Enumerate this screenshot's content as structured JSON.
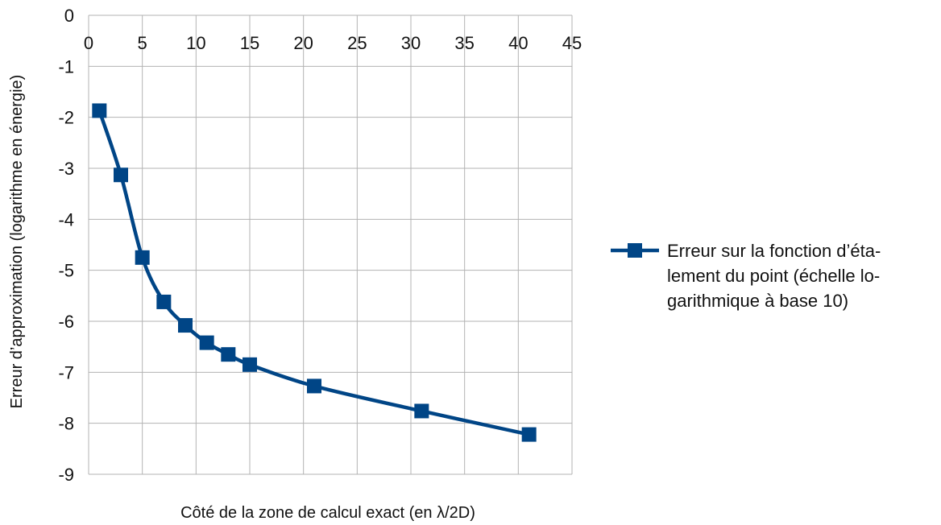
{
  "chart_data": {
    "type": "line",
    "title": "",
    "xlabel": "Côté de la zone de calcul exact (en λ/2D)",
    "ylabel": "Erreur d’approximation (logarithme en énergie)",
    "xlim": [
      0,
      45
    ],
    "ylim": [
      -9,
      0
    ],
    "x_ticks": [
      "0",
      "5",
      "10",
      "15",
      "20",
      "25",
      "30",
      "35",
      "40",
      "45"
    ],
    "y_ticks": [
      "0",
      "-1",
      "-2",
      "-3",
      "-4",
      "-5",
      "-6",
      "-7",
      "-8",
      "-9"
    ],
    "x_axis_position": "top",
    "grid": true,
    "legend_position": "right",
    "series": [
      {
        "name": "Erreur sur la fonction d’étalement du point (échelle logarithmique à base 10)",
        "name_lines": [
          "Erreur sur la fonction d’éta-",
          "lement du point (échelle lo-",
          "garithmique à base 10)"
        ],
        "color": "#004586",
        "marker": "square",
        "x": [
          1,
          3,
          5,
          7,
          9,
          11,
          13,
          15,
          21,
          31,
          41
        ],
        "y": [
          -1.87,
          -3.13,
          -4.75,
          -5.62,
          -6.08,
          -6.42,
          -6.65,
          -6.85,
          -7.27,
          -7.76,
          -8.22
        ]
      }
    ]
  }
}
